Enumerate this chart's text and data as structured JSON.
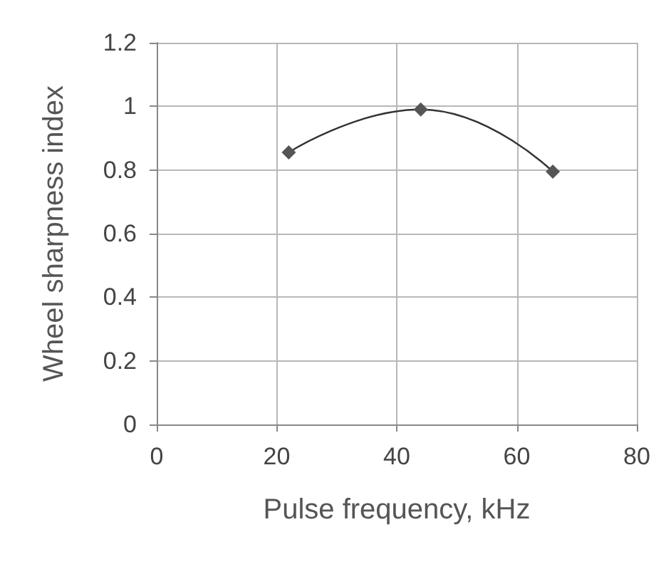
{
  "chart_data": {
    "type": "line",
    "xlabel": "Pulse frequency, kHz",
    "ylabel": "Wheel sharpness index",
    "x": [
      22,
      44,
      66
    ],
    "series": [
      {
        "color": "#555555",
        "values": [
          0.855,
          0.99,
          0.795
        ]
      }
    ],
    "xlim": [
      0,
      80
    ],
    "xticks": [
      0,
      20,
      40,
      60,
      80
    ],
    "ylim": [
      0,
      1.2
    ],
    "yticks": [
      0,
      0.2,
      0.4,
      0.6,
      0.8,
      1,
      1.2
    ],
    "grid": true,
    "marker": "diamond",
    "line_style": "solid"
  }
}
